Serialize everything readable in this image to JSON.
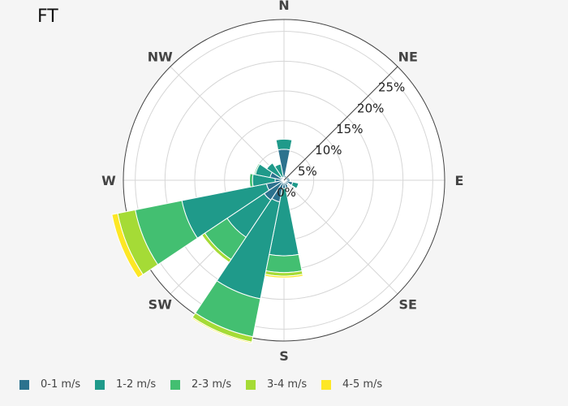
{
  "chart_data": {
    "type": "barpolar",
    "title": "FT",
    "direction_labels": [
      "N",
      "NE",
      "E",
      "SE",
      "S",
      "SW",
      "W",
      "NW"
    ],
    "radial_ticks": [
      "0%",
      "5%",
      "10%",
      "15%",
      "20%",
      "25%"
    ],
    "radial_range": [
      0,
      27
    ],
    "series": [
      {
        "name": "0-1 m/s",
        "color": "#2c728e",
        "directions": [
          "N",
          "NNE",
          "NE",
          "ENE",
          "E",
          "ESE",
          "SE",
          "SSE",
          "S",
          "SSW",
          "SW",
          "WSW",
          "W",
          "WNW",
          "NW",
          "NNW"
        ],
        "values": [
          5.2,
          0.8,
          0.6,
          0.9,
          1.0,
          1.5,
          0.9,
          1.3,
          1.4,
          3.7,
          4.0,
          3.0,
          1.5,
          2.4,
          0.7,
          0.5
        ]
      },
      {
        "name": "1-2 m/s",
        "color": "#1f9a8a",
        "directions": [
          "N",
          "NNE",
          "NE",
          "ENE",
          "E",
          "ESE",
          "SE",
          "SSE",
          "S",
          "SSW",
          "SW",
          "WSW",
          "W",
          "WNW",
          "NW",
          "NNW"
        ],
        "values": [
          1.7,
          0,
          0,
          0,
          0,
          1.0,
          0,
          0,
          11.3,
          16.6,
          7.5,
          14.5,
          3.8,
          2.5,
          2.8,
          2.3
        ]
      },
      {
        "name": "2-3 m/s",
        "color": "#43bf71",
        "directions": [
          "N",
          "NNE",
          "NE",
          "ENE",
          "E",
          "ESE",
          "SE",
          "SSE",
          "S",
          "SSW",
          "SW",
          "WSW",
          "W",
          "WNW",
          "NW",
          "NNW"
        ],
        "values": [
          0,
          0,
          0,
          0,
          0,
          0,
          0,
          0,
          2.8,
          6.5,
          4.5,
          8.0,
          0.5,
          0.2,
          0.1,
          0.1
        ]
      },
      {
        "name": "3-4 m/s",
        "color": "#a5db36",
        "directions": [
          "N",
          "NNE",
          "NE",
          "ENE",
          "E",
          "ESE",
          "SE",
          "SSE",
          "S",
          "SSW",
          "SW",
          "WSW",
          "W",
          "WNW",
          "NW",
          "NNW"
        ],
        "values": [
          0,
          0,
          0,
          0,
          0,
          0,
          0,
          0,
          0.6,
          0.9,
          0.6,
          3.0,
          0,
          0,
          0,
          0
        ]
      },
      {
        "name": "4-5 m/s",
        "color": "#fde725",
        "directions": [
          "N",
          "NNE",
          "NE",
          "ENE",
          "E",
          "ESE",
          "SE",
          "SSE",
          "S",
          "SSW",
          "SW",
          "WSW",
          "W",
          "WNW",
          "NW",
          "NNW"
        ],
        "values": [
          0,
          0,
          0,
          0,
          0,
          0,
          0,
          0,
          0.3,
          0.2,
          0.1,
          1.0,
          0,
          0,
          0,
          0
        ]
      }
    ],
    "grid": true,
    "legend_position": "bottom"
  }
}
